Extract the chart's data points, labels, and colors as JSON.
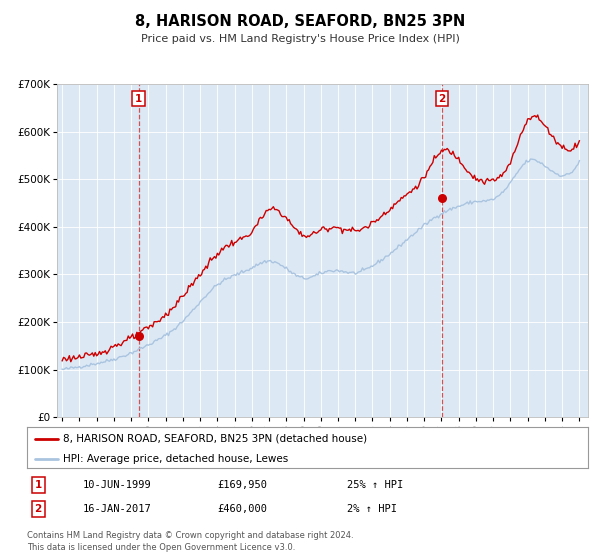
{
  "title": "8, HARISON ROAD, SEAFORD, BN25 3PN",
  "subtitle": "Price paid vs. HM Land Registry's House Price Index (HPI)",
  "bg_color": "#dce9f5",
  "hpi_color": "#aac4e0",
  "price_color": "#cc0000",
  "marker_color": "#cc0000",
  "vline_color": "#cc4444",
  "legend_line1": "8, HARISON ROAD, SEAFORD, BN25 3PN (detached house)",
  "legend_line2": "HPI: Average price, detached house, Lewes",
  "transaction1_date": "10-JUN-1999",
  "transaction1_price": "£169,950",
  "transaction1_hpi": "25% ↑ HPI",
  "transaction2_date": "16-JAN-2017",
  "transaction2_price": "£460,000",
  "transaction2_hpi": "2% ↑ HPI",
  "footer1": "Contains HM Land Registry data © Crown copyright and database right 2024.",
  "footer2": "This data is licensed under the Open Government Licence v3.0.",
  "ylim": [
    0,
    700000
  ],
  "yticks": [
    0,
    100000,
    200000,
    300000,
    400000,
    500000,
    600000,
    700000
  ],
  "ytick_labels": [
    "£0",
    "£100K",
    "£200K",
    "£300K",
    "£400K",
    "£500K",
    "£600K",
    "£700K"
  ],
  "xmin": 1994.7,
  "xmax": 2025.5,
  "vline1_x": 1999.44,
  "vline2_x": 2017.04,
  "marker1_x": 1999.44,
  "marker1_y": 169950,
  "marker2_x": 2017.04,
  "marker2_y": 460000
}
